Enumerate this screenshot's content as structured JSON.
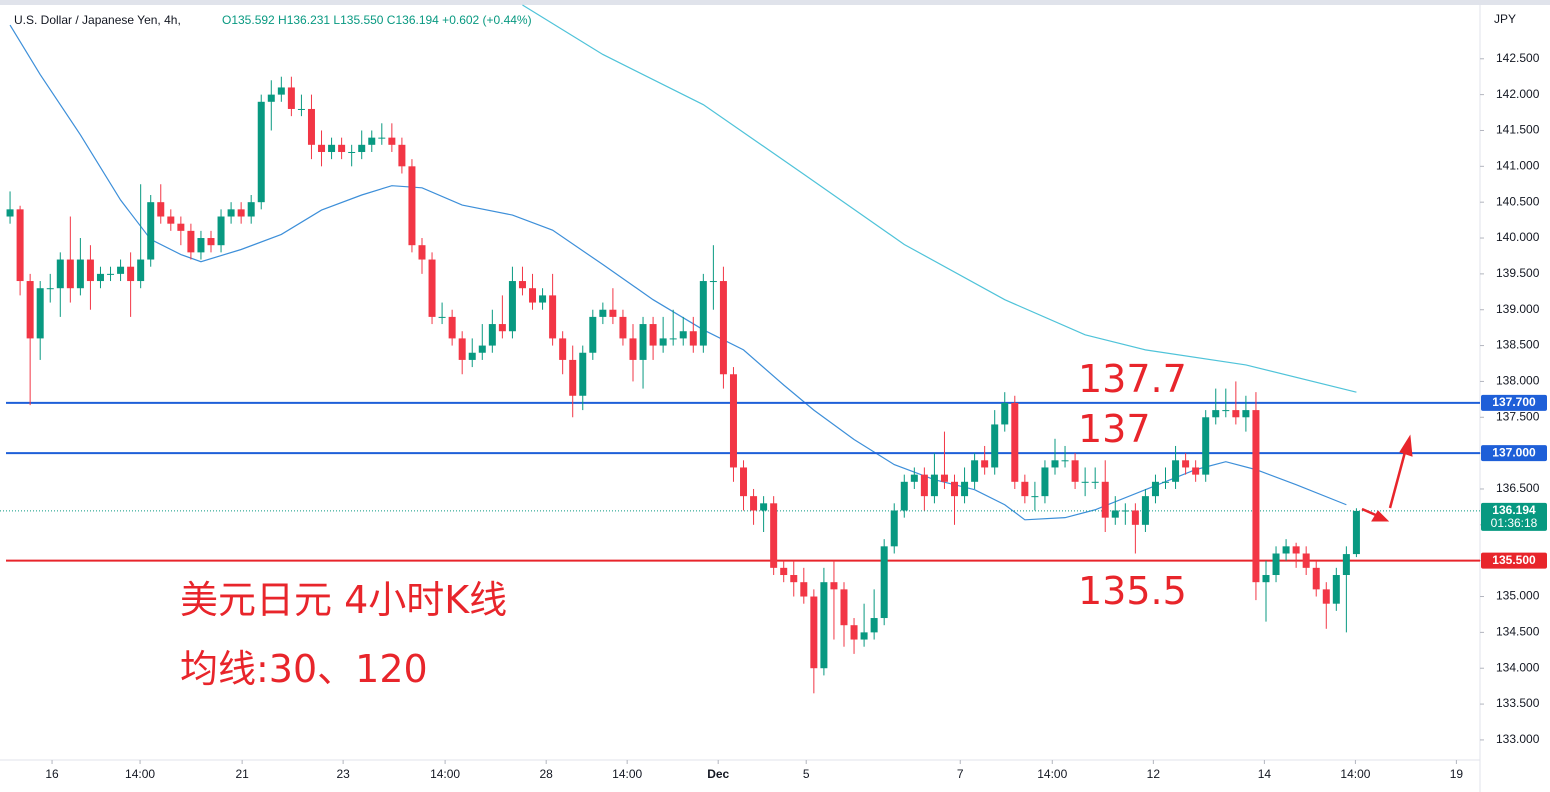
{
  "chart_data": {
    "type": "candlestick",
    "title": "U.S. Dollar / Japanese Yen, 4h,",
    "subtitle": "O135.592 H136.231 L135.550 C136.194 +0.602 (+0.44%)",
    "y_axis_label": "JPY",
    "up_color": "#089981",
    "down_color": "#f23645",
    "open": [
      140.3,
      140.4,
      139.4,
      138.6,
      139.3,
      139.3,
      139.7,
      139.3,
      139.7,
      139.4,
      139.5,
      139.5,
      139.6,
      139.4,
      139.7,
      140.5,
      140.3,
      140.2,
      140.1,
      139.8,
      140.0,
      139.9,
      140.3,
      140.4,
      140.3,
      140.5,
      141.9,
      142.0,
      142.1,
      141.8,
      141.8,
      141.3,
      141.2,
      141.3,
      141.2,
      141.2,
      141.3,
      141.4,
      141.4,
      141.3,
      141.0,
      139.9,
      139.7,
      138.9,
      138.9,
      138.6,
      138.3,
      138.4,
      138.5,
      138.8,
      138.7,
      139.4,
      139.3,
      139.1,
      139.2,
      138.6,
      138.3,
      137.8,
      138.4,
      138.9,
      139.0,
      138.9,
      138.6,
      138.3,
      138.8,
      138.5,
      138.6,
      138.6,
      138.7,
      138.5,
      139.4,
      139.4,
      138.1,
      136.8,
      136.4,
      136.2,
      136.3,
      135.4,
      135.3,
      135.2,
      135.0,
      134.0,
      135.2,
      135.1,
      134.6,
      134.4,
      134.5,
      134.7,
      135.7,
      136.2,
      136.6,
      136.7,
      136.4,
      136.7,
      136.6,
      136.4,
      136.6,
      136.9,
      136.8,
      137.4,
      137.7,
      136.6,
      136.4,
      136.4,
      136.8,
      136.9,
      136.9,
      136.6,
      136.6,
      136.6,
      136.1,
      136.2,
      136.2,
      136.0,
      136.4,
      136.6,
      136.6,
      136.9,
      136.8,
      136.7,
      137.5,
      137.6,
      137.6,
      137.5,
      137.6,
      135.2,
      135.3,
      135.6,
      135.7,
      135.6,
      135.4,
      135.1,
      134.9,
      135.3,
      135.592
    ],
    "high": [
      140.65,
      140.45,
      139.5,
      139.4,
      139.5,
      139.8,
      140.3,
      140.0,
      139.9,
      139.6,
      139.6,
      139.7,
      139.8,
      140.75,
      140.6,
      140.75,
      140.4,
      140.3,
      140.2,
      140.1,
      140.1,
      140.4,
      140.5,
      140.5,
      140.6,
      142.0,
      142.2,
      142.25,
      142.25,
      142.0,
      142.0,
      141.5,
      141.4,
      141.4,
      141.3,
      141.5,
      141.5,
      141.6,
      141.6,
      141.4,
      141.1,
      140.0,
      139.8,
      139.1,
      139.0,
      138.7,
      138.6,
      138.8,
      139.0,
      139.2,
      139.6,
      139.6,
      139.5,
      139.3,
      139.5,
      138.7,
      138.5,
      138.5,
      139.0,
      139.1,
      139.3,
      139.0,
      138.8,
      138.9,
      138.9,
      138.9,
      139.0,
      138.9,
      138.9,
      139.5,
      139.9,
      139.6,
      138.2,
      136.9,
      136.5,
      136.4,
      136.4,
      135.5,
      135.5,
      135.4,
      135.1,
      135.4,
      135.5,
      135.2,
      134.7,
      134.9,
      135.1,
      135.8,
      136.3,
      136.7,
      136.8,
      136.8,
      137.0,
      137.3,
      136.7,
      136.8,
      137.0,
      137.1,
      137.6,
      137.85,
      137.8,
      136.7,
      136.6,
      136.9,
      137.2,
      137.1,
      137.0,
      136.8,
      136.8,
      136.9,
      136.4,
      136.3,
      136.3,
      136.5,
      136.7,
      136.8,
      137.1,
      137.0,
      136.9,
      137.6,
      137.9,
      137.9,
      138.0,
      137.8,
      137.85,
      135.5,
      135.7,
      135.8,
      135.75,
      135.7,
      135.5,
      135.2,
      135.4,
      135.7,
      136.231
    ],
    "low": [
      140.2,
      139.2,
      137.67,
      138.3,
      139.1,
      138.9,
      139.1,
      139.2,
      139.0,
      139.3,
      139.4,
      139.4,
      138.9,
      139.3,
      139.6,
      140.2,
      140.1,
      139.9,
      139.7,
      139.7,
      139.8,
      139.8,
      140.2,
      140.2,
      140.2,
      140.4,
      141.5,
      141.9,
      141.7,
      141.7,
      141.1,
      141.0,
      141.1,
      141.1,
      141.0,
      141.1,
      141.2,
      141.3,
      141.2,
      140.9,
      139.8,
      139.5,
      138.8,
      138.8,
      138.5,
      138.1,
      138.2,
      138.3,
      138.4,
      138.6,
      138.6,
      139.2,
      139.0,
      139.0,
      138.5,
      138.1,
      137.5,
      137.6,
      138.3,
      138.8,
      138.8,
      138.5,
      138.0,
      137.9,
      138.3,
      138.4,
      138.5,
      138.5,
      138.4,
      138.4,
      139.0,
      137.9,
      136.6,
      136.2,
      136.0,
      135.9,
      135.3,
      135.2,
      135.0,
      134.9,
      133.65,
      133.9,
      134.4,
      134.3,
      134.2,
      134.3,
      134.4,
      134.6,
      135.6,
      136.1,
      136.5,
      136.2,
      136.3,
      136.5,
      136.0,
      136.3,
      136.5,
      136.7,
      136.7,
      137.3,
      136.5,
      136.3,
      136.2,
      136.3,
      136.7,
      136.8,
      136.5,
      136.4,
      136.5,
      135.9,
      136.0,
      136.0,
      135.6,
      135.9,
      136.3,
      136.5,
      136.5,
      136.7,
      136.6,
      136.6,
      137.4,
      137.5,
      137.4,
      137.3,
      134.95,
      134.65,
      135.2,
      135.5,
      135.4,
      135.3,
      135.0,
      134.55,
      134.8,
      134.5,
      135.55
    ],
    "close": [
      140.4,
      139.4,
      138.6,
      139.3,
      139.3,
      139.7,
      139.3,
      139.7,
      139.4,
      139.5,
      139.5,
      139.6,
      139.4,
      139.7,
      140.5,
      140.3,
      140.2,
      140.1,
      139.8,
      140.0,
      139.9,
      140.3,
      140.4,
      140.3,
      140.5,
      141.9,
      142.0,
      142.1,
      141.8,
      141.8,
      141.3,
      141.2,
      141.3,
      141.2,
      141.2,
      141.3,
      141.4,
      141.4,
      141.3,
      141.0,
      139.9,
      139.7,
      138.9,
      138.9,
      138.6,
      138.3,
      138.4,
      138.5,
      138.8,
      138.7,
      139.4,
      139.3,
      139.1,
      139.2,
      138.6,
      138.3,
      137.8,
      138.4,
      138.9,
      139.0,
      138.9,
      138.6,
      138.3,
      138.8,
      138.5,
      138.6,
      138.6,
      138.7,
      138.5,
      139.4,
      139.4,
      138.1,
      136.8,
      136.4,
      136.2,
      136.3,
      135.4,
      135.3,
      135.2,
      135.0,
      134.0,
      135.2,
      135.1,
      134.6,
      134.4,
      134.5,
      134.7,
      135.7,
      136.2,
      136.6,
      136.7,
      136.4,
      136.7,
      136.6,
      136.4,
      136.6,
      136.9,
      136.8,
      137.4,
      137.7,
      136.6,
      136.4,
      136.4,
      136.8,
      136.9,
      136.9,
      136.6,
      136.6,
      136.6,
      136.1,
      136.2,
      136.2,
      136.0,
      136.4,
      136.6,
      136.6,
      136.9,
      136.8,
      136.7,
      137.5,
      137.6,
      137.6,
      137.5,
      137.6,
      135.2,
      135.3,
      135.6,
      135.7,
      135.6,
      135.4,
      135.1,
      134.9,
      135.3,
      135.592,
      136.194
    ],
    "lines": [
      {
        "color": "#3d8fd9",
        "x": [
          0,
          3,
          7,
          11,
          14,
          17,
          19,
          23,
          27,
          31,
          35,
          38,
          41,
          45,
          50,
          54,
          59,
          64,
          69,
          73,
          77,
          80,
          84,
          88,
          92,
          96,
          99,
          101,
          105,
          108,
          113,
          118,
          121,
          124,
          128,
          133
        ],
        "values": [
          142.97,
          142.28,
          141.44,
          140.53,
          139.98,
          139.77,
          139.67,
          139.84,
          140.05,
          140.39,
          140.6,
          140.73,
          140.7,
          140.46,
          140.32,
          140.11,
          139.63,
          139.14,
          138.72,
          138.44,
          137.95,
          137.6,
          137.19,
          136.84,
          136.63,
          136.49,
          136.28,
          136.07,
          136.1,
          136.21,
          136.49,
          136.77,
          136.88,
          136.77,
          136.56,
          136.28
        ]
      },
      {
        "color": "#4fc3d9",
        "x": [
          51,
          59,
          69,
          79,
          89,
          99,
          107,
          113,
          123,
          134
        ],
        "values": [
          143.25,
          142.56,
          141.86,
          140.89,
          139.91,
          139.14,
          138.65,
          138.44,
          138.23,
          137.85
        ]
      }
    ],
    "levels": [
      {
        "value": 137.7,
        "label": "137.700",
        "color": "#1e5fd8"
      },
      {
        "value": 137.0,
        "label": "137.000",
        "color": "#1e5fd8"
      },
      {
        "value": 135.5,
        "label": "135.500",
        "color": "#e8252b"
      }
    ],
    "last_price": {
      "value": 136.194,
      "label": "136.194",
      "countdown": "01:36:18",
      "color": "#089981"
    },
    "annotations": [
      "137.7",
      "137",
      "135.5",
      "美元日元 4小时K线",
      "均线:30、120"
    ],
    "xlim": [
      -1,
      146.3
    ],
    "xticks": [
      {
        "value": 4.18,
        "label": "16"
      },
      {
        "value": 12.94,
        "label": "14:00"
      },
      {
        "value": 23.1,
        "label": "21"
      },
      {
        "value": 33.15,
        "label": "23"
      },
      {
        "value": 43.3,
        "label": "14:00"
      },
      {
        "value": 53.36,
        "label": "28"
      },
      {
        "value": 61.42,
        "label": "14:00"
      },
      {
        "value": 70.48,
        "label": "Dec"
      },
      {
        "value": 79.24,
        "label": "5"
      },
      {
        "value": 94.57,
        "label": "7"
      },
      {
        "value": 103.73,
        "label": "14:00"
      },
      {
        "value": 113.79,
        "label": "12"
      },
      {
        "value": 124.84,
        "label": "14"
      },
      {
        "value": 133.9,
        "label": "14:00"
      },
      {
        "value": 143.95,
        "label": "19"
      }
    ],
    "ylim": [
      132.72,
      143.25
    ],
    "yticks": [
      {
        "value": 133.0,
        "label": "133.000"
      },
      {
        "value": 133.5,
        "label": "133.500"
      },
      {
        "value": 134.0,
        "label": "134.000"
      },
      {
        "value": 134.5,
        "label": "134.500"
      },
      {
        "value": 135.0,
        "label": "135.000"
      },
      {
        "value": 135.5,
        "label": "135.500"
      },
      {
        "value": 136.0,
        "label": "136.000"
      },
      {
        "value": 136.5,
        "label": "136.500"
      },
      {
        "value": 137.0,
        "label": "137.000"
      },
      {
        "value": 137.5,
        "label": "137.500"
      },
      {
        "value": 138.0,
        "label": "138.000"
      },
      {
        "value": 138.5,
        "label": "138.500"
      },
      {
        "value": 139.0,
        "label": "139.000"
      },
      {
        "value": 139.5,
        "label": "139.500"
      },
      {
        "value": 140.0,
        "label": "140.000"
      },
      {
        "value": 140.5,
        "label": "140.500"
      },
      {
        "value": 141.0,
        "label": "141.000"
      },
      {
        "value": 141.5,
        "label": "141.500"
      },
      {
        "value": 142.0,
        "label": "142.000"
      },
      {
        "value": 142.5,
        "label": "142.500"
      }
    ],
    "grid": false
  }
}
